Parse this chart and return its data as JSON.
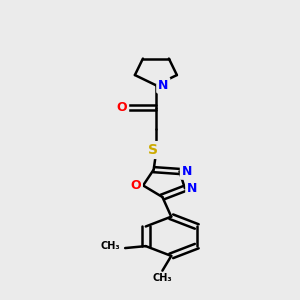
{
  "background_color": "#ebebeb",
  "atom_colors": {
    "C": "#000000",
    "N": "#0000ff",
    "O": "#ff0000",
    "S": "#ccaa00"
  },
  "bond_width": 1.8,
  "figsize": [
    3.0,
    3.0
  ],
  "dpi": 100
}
